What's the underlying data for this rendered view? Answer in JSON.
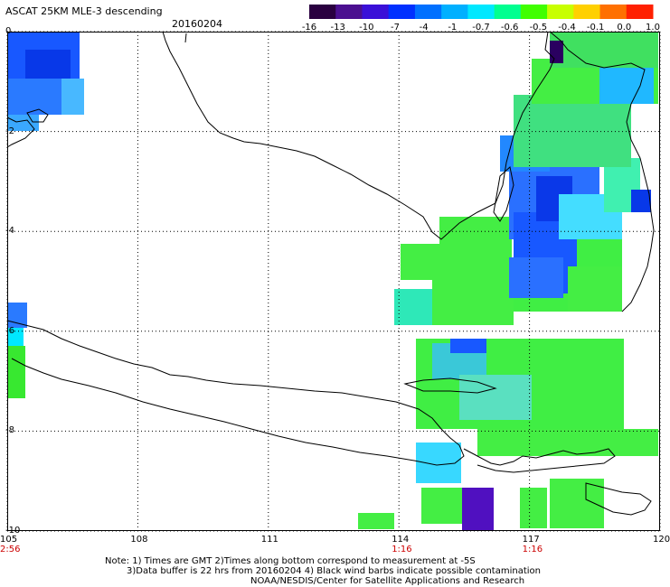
{
  "header": {
    "title": "ASCAT 25KM MLE-3 descending",
    "date": "20160204"
  },
  "colorbar": {
    "labels": [
      "-16",
      "-13",
      "-10",
      "-7",
      "-4",
      "-1",
      "-0.7",
      "-0.6",
      "-0.5",
      "-0.4",
      "-0.1",
      "0.0",
      "1.0"
    ],
    "colors": [
      "#2a0040",
      "#4b1090",
      "#3a10d8",
      "#0030ff",
      "#0070ff",
      "#00b0ff",
      "#00e8ff",
      "#00ff90",
      "#40ff00",
      "#c8ff00",
      "#ffd000",
      "#ff7000",
      "#ff2000"
    ]
  },
  "axes": {
    "lon_labels": [
      "105",
      "108",
      "111",
      "114",
      "117",
      "120"
    ],
    "lat_labels": [
      "0",
      "-2",
      "-4",
      "-6",
      "-8",
      "-10"
    ],
    "lon_range": [
      105,
      120
    ],
    "lat_range": [
      -10,
      0
    ]
  },
  "times": [
    {
      "lon": 105,
      "label": "2:56"
    },
    {
      "lon": 114,
      "label": "1:16"
    },
    {
      "lon": 117,
      "label": "1:16"
    }
  ],
  "notes": {
    "line1": "Note: 1) Times are GMT 2)Times along bottom correspond to measurement at -5S",
    "line2": "3)Data buffer is 22 hrs from 20160204 4) Black wind barbs indicate possible contamination",
    "line3": "NOAA/NESDIS/Center for Satellite Applications and Research"
  },
  "colors": {
    "land_outline": "#000000",
    "grid": "#000000",
    "time_label": "#cc0000"
  }
}
